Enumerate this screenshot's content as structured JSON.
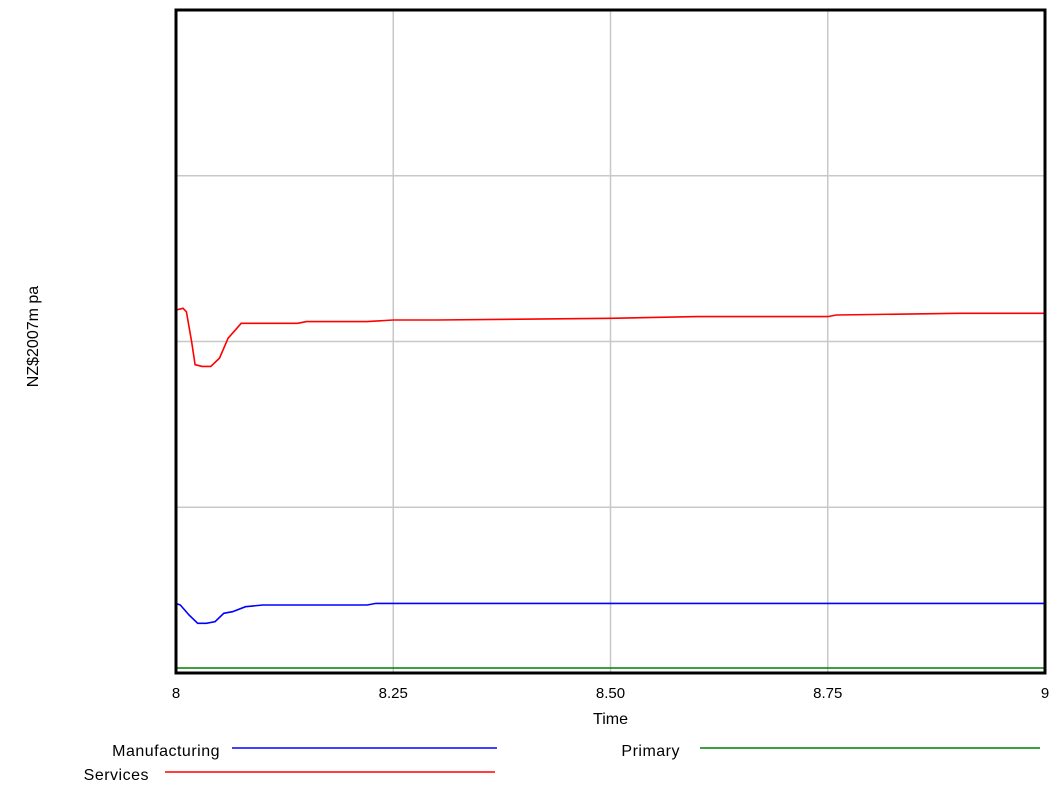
{
  "chart_data": {
    "type": "line",
    "title": "",
    "xlabel": "Time",
    "ylabel": "NZ$2007m pa",
    "xlim": [
      8,
      9
    ],
    "ylim": [
      0,
      4
    ],
    "x_ticks": [
      "8",
      "8.25",
      "8.50",
      "8.75",
      "9"
    ],
    "grid": true,
    "legend_position": "bottom",
    "series": [
      {
        "name": "Manufacturing",
        "color": "#0000ff",
        "points": [
          [
            8.0,
            0.42
          ],
          [
            8.005,
            0.41
          ],
          [
            8.01,
            0.38
          ],
          [
            8.015,
            0.35
          ],
          [
            8.025,
            0.3
          ],
          [
            8.035,
            0.3
          ],
          [
            8.045,
            0.31
          ],
          [
            8.055,
            0.36
          ],
          [
            8.065,
            0.37
          ],
          [
            8.08,
            0.4
          ],
          [
            8.1,
            0.41
          ],
          [
            8.15,
            0.41
          ],
          [
            8.22,
            0.41
          ],
          [
            8.23,
            0.42
          ],
          [
            8.3,
            0.42
          ],
          [
            8.5,
            0.42
          ],
          [
            8.75,
            0.42
          ],
          [
            9.0,
            0.42
          ]
        ]
      },
      {
        "name": "Primary",
        "color": "#008000",
        "points": [
          [
            8.0,
            0.03
          ],
          [
            9.0,
            0.03
          ]
        ]
      },
      {
        "name": "Services",
        "color": "#ff0000",
        "points": [
          [
            8.0,
            2.19
          ],
          [
            8.008,
            2.2
          ],
          [
            8.012,
            2.18
          ],
          [
            8.018,
            2.0
          ],
          [
            8.022,
            1.86
          ],
          [
            8.03,
            1.85
          ],
          [
            8.04,
            1.85
          ],
          [
            8.05,
            1.9
          ],
          [
            8.06,
            2.02
          ],
          [
            8.075,
            2.11
          ],
          [
            8.1,
            2.11
          ],
          [
            8.14,
            2.11
          ],
          [
            8.15,
            2.12
          ],
          [
            8.22,
            2.12
          ],
          [
            8.25,
            2.13
          ],
          [
            8.3,
            2.13
          ],
          [
            8.5,
            2.14
          ],
          [
            8.6,
            2.15
          ],
          [
            8.75,
            2.15
          ],
          [
            8.76,
            2.16
          ],
          [
            8.9,
            2.17
          ],
          [
            9.0,
            2.17
          ]
        ]
      }
    ],
    "legend": [
      {
        "label": "Manufacturing",
        "series": 0
      },
      {
        "label": "Primary",
        "series": 1
      },
      {
        "label": "Services",
        "series": 2
      }
    ]
  }
}
